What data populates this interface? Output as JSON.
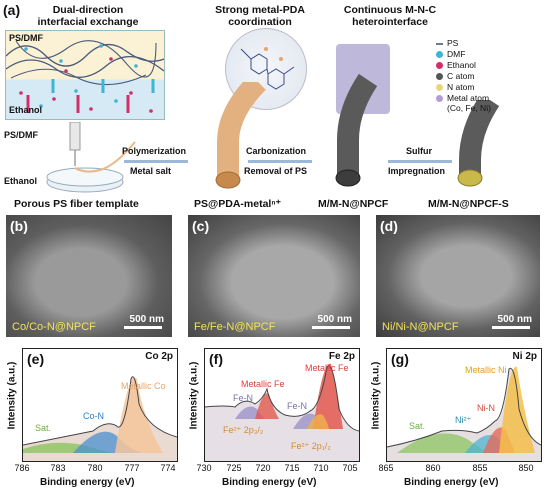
{
  "panel_a": {
    "letter": "(a)",
    "step1_title": "Dual-direction interfacial exchange",
    "step2_title": "Strong metal-PDA coordination",
    "step3_title": "Continuous M-N-C heterointerface",
    "ps_dmf_top": "PS/DMF",
    "ethanol_top": "Ethanol",
    "ps_dmf_mid": "PS/DMF",
    "ethanol_mid": "Ethanol",
    "arrow1_top": "Polymerization",
    "arrow1_bottom": "Metal salt",
    "arrow2_top": "Carbonization",
    "arrow2_bottom": "Removal of PS",
    "arrow3_top": "Sulfur",
    "arrow3_bottom": "Impregnation",
    "label1": "Porous PS fiber template",
    "label2": "PS@PDA-metalⁿ⁺",
    "label3": "M/M-N@NPCF",
    "label4": "M/M-N@NPCF-S",
    "legend": [
      {
        "name": "PS",
        "color": "#6c7a99"
      },
      {
        "name": "DMF",
        "color": "#3fb5d6"
      },
      {
        "name": "Ethanol",
        "color": "#d0306a"
      },
      {
        "name": "C atom",
        "color": "#555555"
      },
      {
        "name": "N atom",
        "color": "#e8d77a"
      },
      {
        "name": "Metal atom",
        "color": "#b79bd8"
      },
      {
        "name": "(Co, Fe, Ni)",
        "color": ""
      }
    ]
  },
  "sem": [
    {
      "letter": "(b)",
      "label": "Co/Co-N@NPCF",
      "scale": "500 nm"
    },
    {
      "letter": "(c)",
      "label": "Fe/Fe-N@NPCF",
      "scale": "500 nm"
    },
    {
      "letter": "(d)",
      "label": "Ni/Ni-N@NPCF",
      "scale": "500 nm"
    }
  ],
  "xps": [
    {
      "letter": "(e)",
      "element": "Co 2p",
      "xlabel": "Binding energy (eV)",
      "ylabel": "Intensity (a.u.)",
      "ticks": [
        "786",
        "783",
        "780",
        "777",
        "774"
      ],
      "peaks": [
        {
          "text": "Metallic Co",
          "color": "#e8a46a"
        },
        {
          "text": "Co-N",
          "color": "#2a7fc4"
        },
        {
          "text": "Sat.",
          "color": "#6dae3e"
        }
      ]
    },
    {
      "letter": "(f)",
      "element": "Fe 2p",
      "xlabel": "Binding energy (eV)",
      "ylabel": "Intensity (a.u.)",
      "ticks": [
        "730",
        "725",
        "720",
        "715",
        "710",
        "705"
      ],
      "peaks": [
        {
          "text": "Metallic Fe",
          "color": "#d9443b"
        },
        {
          "text": "Metallic Fe",
          "color": "#d9443b"
        },
        {
          "text": "Fe-N",
          "color": "#7a6fb3"
        },
        {
          "text": "Fe-N",
          "color": "#7a6fb3"
        },
        {
          "text": "Fe²⁺ 2p₃/₂",
          "color": "#d88b2a"
        },
        {
          "text": "Fe²⁺ 2p₁/₂",
          "color": "#d88b2a"
        }
      ]
    },
    {
      "letter": "(g)",
      "element": "Ni 2p",
      "xlabel": "Binding energy (eV)",
      "ylabel": "Intensity (a.u.)",
      "ticks": [
        "865",
        "860",
        "855",
        "850"
      ],
      "peaks": [
        {
          "text": "Metallic Ni",
          "color": "#e69b1e"
        },
        {
          "text": "Ni-N",
          "color": "#d14a3c"
        },
        {
          "text": "Ni²⁺",
          "color": "#2a8fb0"
        },
        {
          "text": "Sat.",
          "color": "#6dae3e"
        }
      ]
    }
  ]
}
